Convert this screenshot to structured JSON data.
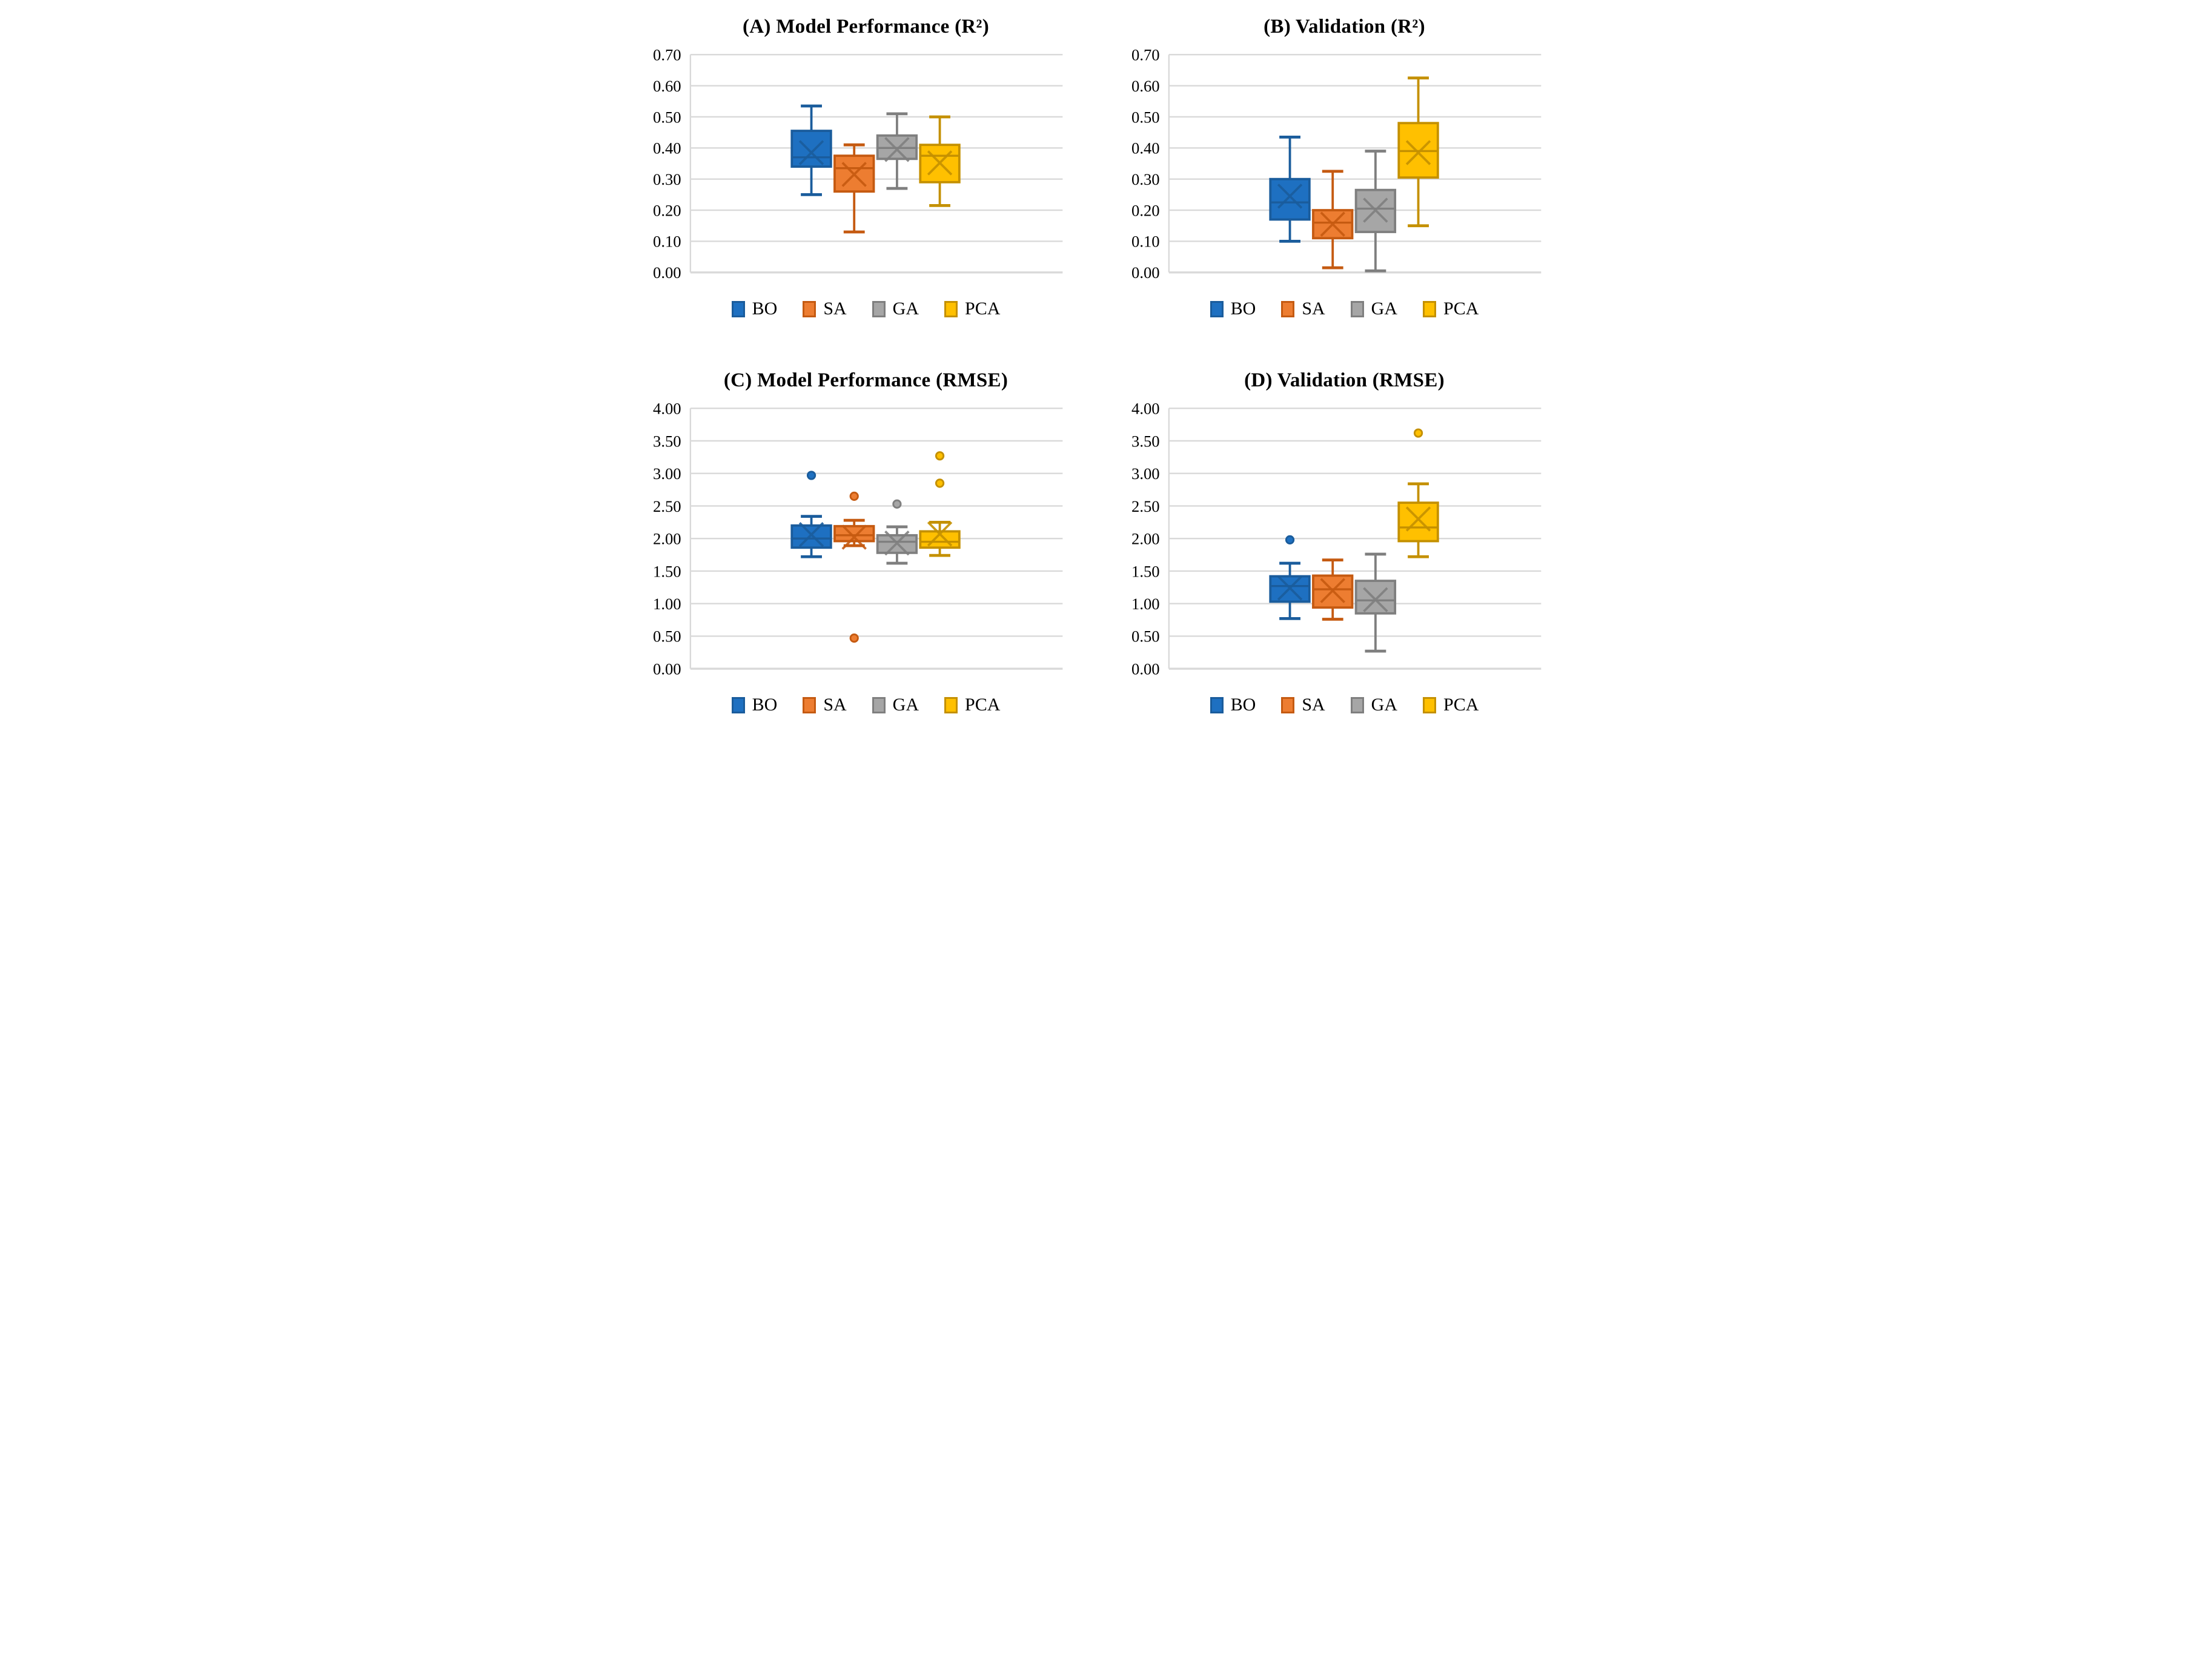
{
  "grid_color": "#D9D9D9",
  "palette": {
    "BO": {
      "fill": "#1E70C1",
      "stroke": "#1A5C9C"
    },
    "SA": {
      "fill": "#ED7D31",
      "stroke": "#C55A11"
    },
    "GA": {
      "fill": "#A6A6A6",
      "stroke": "#7F7F7F"
    },
    "PCA": {
      "fill": "#FFC000",
      "stroke": "#C49000"
    }
  },
  "chart_data": [
    {
      "id": "A",
      "type": "boxplot",
      "title": "(A) Model Performance (R²)",
      "ylim": [
        0.0,
        0.7
      ],
      "ytick_labels": [
        "0.00",
        "0.10",
        "0.20",
        "0.30",
        "0.40",
        "0.50",
        "0.60",
        "0.70"
      ],
      "grid": true,
      "legend_position": "bottom",
      "categories": [
        "BO",
        "SA",
        "GA",
        "PCA"
      ],
      "series": [
        {
          "name": "BO",
          "whisker_low": 0.25,
          "q1": 0.34,
          "median": 0.37,
          "mean": 0.385,
          "q3": 0.455,
          "whisker_high": 0.535,
          "outliers": []
        },
        {
          "name": "SA",
          "whisker_low": 0.13,
          "q1": 0.26,
          "median": 0.335,
          "mean": 0.315,
          "q3": 0.375,
          "whisker_high": 0.41,
          "outliers": []
        },
        {
          "name": "GA",
          "whisker_low": 0.27,
          "q1": 0.365,
          "median": 0.4,
          "mean": 0.395,
          "q3": 0.44,
          "whisker_high": 0.51,
          "outliers": []
        },
        {
          "name": "PCA",
          "whisker_low": 0.215,
          "q1": 0.29,
          "median": 0.375,
          "mean": 0.352,
          "q3": 0.41,
          "whisker_high": 0.5,
          "outliers": []
        }
      ]
    },
    {
      "id": "B",
      "type": "boxplot",
      "title": "(B) Validation (R²)",
      "ylim": [
        0.0,
        0.7
      ],
      "ytick_labels": [
        "0.00",
        "0.10",
        "0.20",
        "0.30",
        "0.40",
        "0.50",
        "0.60",
        "0.70"
      ],
      "grid": true,
      "legend_position": "bottom",
      "categories": [
        "BO",
        "SA",
        "GA",
        "PCA"
      ],
      "series": [
        {
          "name": "BO",
          "whisker_low": 0.1,
          "q1": 0.17,
          "median": 0.225,
          "mean": 0.245,
          "q3": 0.3,
          "whisker_high": 0.435,
          "outliers": []
        },
        {
          "name": "SA",
          "whisker_low": 0.015,
          "q1": 0.11,
          "median": 0.16,
          "mean": 0.155,
          "q3": 0.2,
          "whisker_high": 0.325,
          "outliers": []
        },
        {
          "name": "GA",
          "whisker_low": 0.005,
          "q1": 0.13,
          "median": 0.205,
          "mean": 0.2,
          "q3": 0.265,
          "whisker_high": 0.39,
          "outliers": []
        },
        {
          "name": "PCA",
          "whisker_low": 0.15,
          "q1": 0.305,
          "median": 0.39,
          "mean": 0.385,
          "q3": 0.48,
          "whisker_high": 0.625,
          "outliers": []
        }
      ]
    },
    {
      "id": "C",
      "type": "boxplot",
      "title": "(C) Model Performance (RMSE)",
      "ylim": [
        0.0,
        4.0
      ],
      "ytick_labels": [
        "0.00",
        "0.50",
        "1.00",
        "1.50",
        "2.00",
        "2.50",
        "3.00",
        "3.50",
        "4.00"
      ],
      "grid": true,
      "legend_position": "bottom",
      "categories": [
        "BO",
        "SA",
        "GA",
        "PCA"
      ],
      "series": [
        {
          "name": "BO",
          "whisker_low": 1.72,
          "q1": 1.86,
          "median": 2.0,
          "mean": 2.06,
          "q3": 2.2,
          "whisker_high": 2.34,
          "outliers": [
            2.97
          ]
        },
        {
          "name": "SA",
          "whisker_low": 1.89,
          "q1": 1.96,
          "median": 2.05,
          "mean": 2.02,
          "q3": 2.19,
          "whisker_high": 2.28,
          "outliers": [
            2.65,
            0.47
          ]
        },
        {
          "name": "GA",
          "whisker_low": 1.62,
          "q1": 1.78,
          "median": 1.95,
          "mean": 1.93,
          "q3": 2.05,
          "whisker_high": 2.18,
          "outliers": [
            2.53
          ]
        },
        {
          "name": "PCA",
          "whisker_low": 1.74,
          "q1": 1.86,
          "median": 1.95,
          "mean": 2.07,
          "q3": 2.11,
          "whisker_high": 2.25,
          "outliers": [
            3.27,
            2.85
          ]
        }
      ]
    },
    {
      "id": "D",
      "type": "boxplot",
      "title": "(D) Validation (RMSE)",
      "ylim": [
        0.0,
        4.0
      ],
      "ytick_labels": [
        "0.00",
        "0.50",
        "1.00",
        "1.50",
        "2.00",
        "2.50",
        "3.00",
        "3.50",
        "4.00"
      ],
      "grid": true,
      "legend_position": "bottom",
      "categories": [
        "BO",
        "SA",
        "GA",
        "PCA"
      ],
      "series": [
        {
          "name": "BO",
          "whisker_low": 0.77,
          "q1": 1.03,
          "median": 1.27,
          "mean": 1.24,
          "q3": 1.42,
          "whisker_high": 1.62,
          "outliers": [
            1.98
          ]
        },
        {
          "name": "SA",
          "whisker_low": 0.76,
          "q1": 0.94,
          "median": 1.22,
          "mean": 1.2,
          "q3": 1.43,
          "whisker_high": 1.67,
          "outliers": []
        },
        {
          "name": "GA",
          "whisker_low": 0.27,
          "q1": 0.85,
          "median": 1.05,
          "mean": 1.06,
          "q3": 1.35,
          "whisker_high": 1.76,
          "outliers": []
        },
        {
          "name": "PCA",
          "whisker_low": 1.72,
          "q1": 1.96,
          "median": 2.17,
          "mean": 2.3,
          "q3": 2.55,
          "whisker_high": 2.84,
          "outliers": [
            3.62
          ]
        }
      ]
    }
  ]
}
